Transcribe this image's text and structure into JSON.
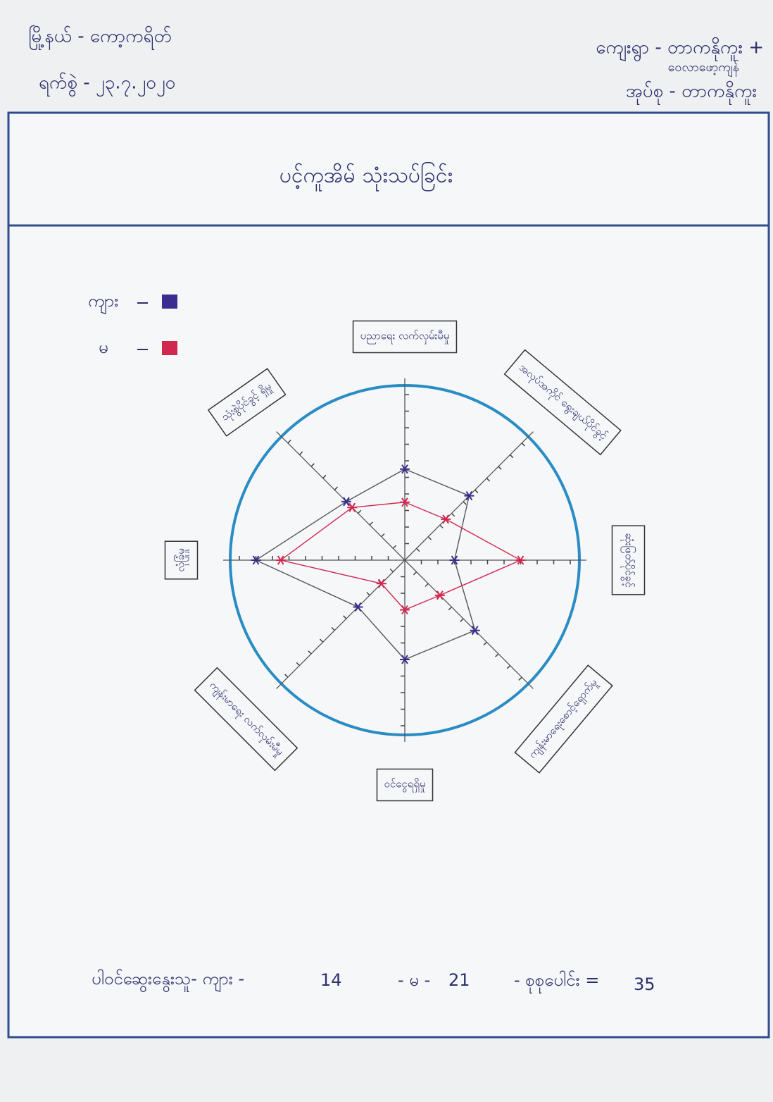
{
  "header": {
    "township": "မြို့နယ် - ကော့ကရိတ်",
    "date": "ရက်စွဲ - ၂၃.၇.၂၀၂၀",
    "village": "ကျေးရွာ - တာကနိုကူး +",
    "village_extra": "ဝေလာဖော့ကျန်",
    "tract": "အုပ်စု - တာကနိုကူး"
  },
  "chart_data": {
    "type": "radar",
    "title": "ပင့်ကူအိမ် သုံးသပ်ခြင်း",
    "categories": [
      "ပညာရေး လက်လှမ်းမီမှု",
      "အလုပ်အကိုင် ရွေးချယ်ပိုင်ခွင့်",
      "ဆုံးဖြတ်ပိုင်ခွင့်",
      "ကျန်းမာရေးစောင့်ရှောက်မှု",
      "ဝင်ငွေရရှိမှု",
      "ကျန်းမာရေး လက်လှမ်းမီမှု",
      "လုံခြုံမှု",
      "သုံးစွဲပိုင်ခွင့် ရှိမှု"
    ],
    "series": [
      {
        "name": "ကျား",
        "color": "#3b2d8f",
        "values": [
          5.5,
          5.5,
          3,
          6,
          6,
          4,
          9,
          5
        ]
      },
      {
        "name": "မ",
        "color": "#d0284f",
        "values": [
          3.5,
          3.5,
          7,
          3,
          3,
          2,
          7.5,
          4.5
        ]
      }
    ],
    "rlim": [
      0,
      10
    ],
    "rticks": [
      1,
      2,
      3,
      4,
      5,
      6,
      7,
      8,
      9,
      10
    ]
  },
  "footer": {
    "participants": "ပါဝင်ဆွေးနွေးသူ- ကျား -",
    "male": 14,
    "female_label": "- မ -",
    "female": 21,
    "total_label": "- စုစုပေါင်း =",
    "total": 35
  }
}
